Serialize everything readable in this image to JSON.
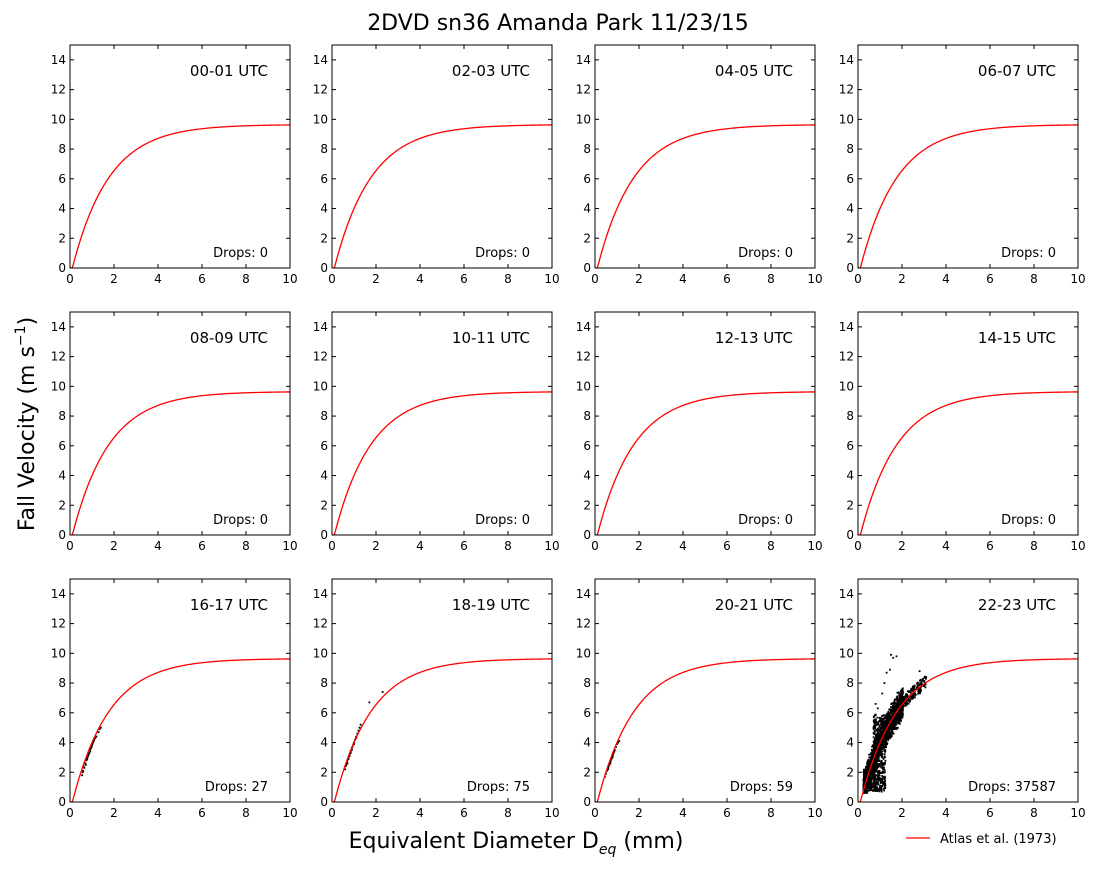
{
  "figure": {
    "title": "2DVD sn36 Amanda Park 11/23/15",
    "ylabel_main": "Fall Velocity (m s",
    "ylabel_sup": "−1",
    "ylabel_end": ")",
    "xlabel_main": "Equivalent Diameter D",
    "xlabel_sub": "eq",
    "xlabel_end": " (mm)",
    "legend": {
      "label": "Atlas et al. (1973)",
      "color": "#ff0000",
      "placement": "lower-right"
    },
    "drops_prefix": "Drops: "
  },
  "chart_data": {
    "type": "scatter",
    "shared_axes": {
      "xlim": [
        0,
        10
      ],
      "ylim": [
        0,
        15
      ],
      "x_ticks": [
        0,
        2,
        4,
        6,
        8,
        10
      ],
      "y_ticks": [
        0,
        2,
        4,
        6,
        8,
        10,
        12,
        14
      ],
      "grid": false
    },
    "reference_curve": {
      "name": "Atlas et al. (1973)",
      "formula": "v = 9.65 - 10.3*exp(-0.6*D)",
      "color": "#ff0000"
    },
    "panels": [
      {
        "title": "00-01 UTC",
        "drops": "0",
        "points": []
      },
      {
        "title": "02-03 UTC",
        "drops": "0",
        "points": []
      },
      {
        "title": "04-05 UTC",
        "drops": "0",
        "points": []
      },
      {
        "title": "06-07 UTC",
        "drops": "0",
        "points": []
      },
      {
        "title": "08-09 UTC",
        "drops": "0",
        "points": []
      },
      {
        "title": "10-11 UTC",
        "drops": "0",
        "points": []
      },
      {
        "title": "12-13 UTC",
        "drops": "0",
        "points": []
      },
      {
        "title": "14-15 UTC",
        "drops": "0",
        "points": []
      },
      {
        "title": "16-17 UTC",
        "drops": "27",
        "points": [
          [
            0.55,
            1.8
          ],
          [
            0.6,
            2.1
          ],
          [
            0.62,
            2.4
          ],
          [
            0.65,
            2.3
          ],
          [
            0.7,
            2.6
          ],
          [
            0.72,
            2.5
          ],
          [
            0.75,
            2.8
          ],
          [
            0.78,
            2.9
          ],
          [
            0.8,
            3.0
          ],
          [
            0.82,
            3.1
          ],
          [
            0.85,
            3.2
          ],
          [
            0.88,
            3.3
          ],
          [
            0.9,
            3.5
          ],
          [
            0.92,
            3.4
          ],
          [
            0.95,
            3.6
          ],
          [
            0.98,
            3.7
          ],
          [
            1.0,
            3.8
          ],
          [
            1.02,
            3.9
          ],
          [
            1.05,
            4.0
          ],
          [
            1.08,
            4.1
          ],
          [
            1.1,
            4.2
          ],
          [
            1.15,
            4.3
          ],
          [
            1.2,
            4.4
          ],
          [
            1.3,
            4.7
          ],
          [
            1.35,
            4.9
          ],
          [
            1.4,
            5.0
          ],
          [
            0.58,
            2.0
          ]
        ]
      },
      {
        "title": "18-19 UTC",
        "drops": "75",
        "points": [
          [
            0.6,
            2.2
          ],
          [
            0.62,
            2.4
          ],
          [
            0.65,
            2.5
          ],
          [
            0.68,
            2.7
          ],
          [
            0.7,
            2.8
          ],
          [
            0.72,
            2.9
          ],
          [
            0.75,
            3.0
          ],
          [
            0.78,
            3.1
          ],
          [
            0.8,
            3.2
          ],
          [
            0.82,
            3.3
          ],
          [
            0.85,
            3.4
          ],
          [
            0.88,
            3.5
          ],
          [
            0.9,
            3.6
          ],
          [
            0.92,
            3.7
          ],
          [
            0.95,
            3.8
          ],
          [
            0.98,
            3.9
          ],
          [
            1.0,
            4.0
          ],
          [
            1.05,
            4.2
          ],
          [
            1.1,
            4.4
          ],
          [
            1.15,
            4.6
          ],
          [
            1.2,
            4.8
          ],
          [
            1.25,
            5.0
          ],
          [
            1.3,
            5.2
          ],
          [
            0.7,
            2.6
          ],
          [
            0.75,
            2.9
          ],
          [
            0.8,
            3.1
          ],
          [
            0.85,
            3.3
          ],
          [
            0.9,
            3.5
          ],
          [
            1.0,
            3.9
          ],
          [
            1.1,
            4.3
          ],
          [
            1.7,
            6.7
          ],
          [
            2.3,
            7.4
          ]
        ]
      },
      {
        "title": "20-21 UTC",
        "drops": "59",
        "points": [
          [
            0.45,
            1.7
          ],
          [
            0.5,
            1.9
          ],
          [
            0.55,
            2.1
          ],
          [
            0.6,
            2.3
          ],
          [
            0.62,
            2.4
          ],
          [
            0.65,
            2.5
          ],
          [
            0.68,
            2.6
          ],
          [
            0.7,
            2.7
          ],
          [
            0.72,
            2.8
          ],
          [
            0.75,
            2.9
          ],
          [
            0.78,
            3.0
          ],
          [
            0.8,
            3.1
          ],
          [
            0.82,
            3.2
          ],
          [
            0.85,
            3.3
          ],
          [
            0.88,
            3.4
          ],
          [
            0.9,
            3.5
          ],
          [
            0.95,
            3.7
          ],
          [
            1.0,
            3.9
          ],
          [
            1.05,
            4.0
          ],
          [
            1.1,
            4.1
          ],
          [
            0.6,
            2.2
          ],
          [
            0.7,
            2.6
          ],
          [
            0.8,
            3.0
          ]
        ]
      },
      {
        "title": "22-23 UTC",
        "drops": "37587",
        "points": "dense"
      }
    ]
  }
}
